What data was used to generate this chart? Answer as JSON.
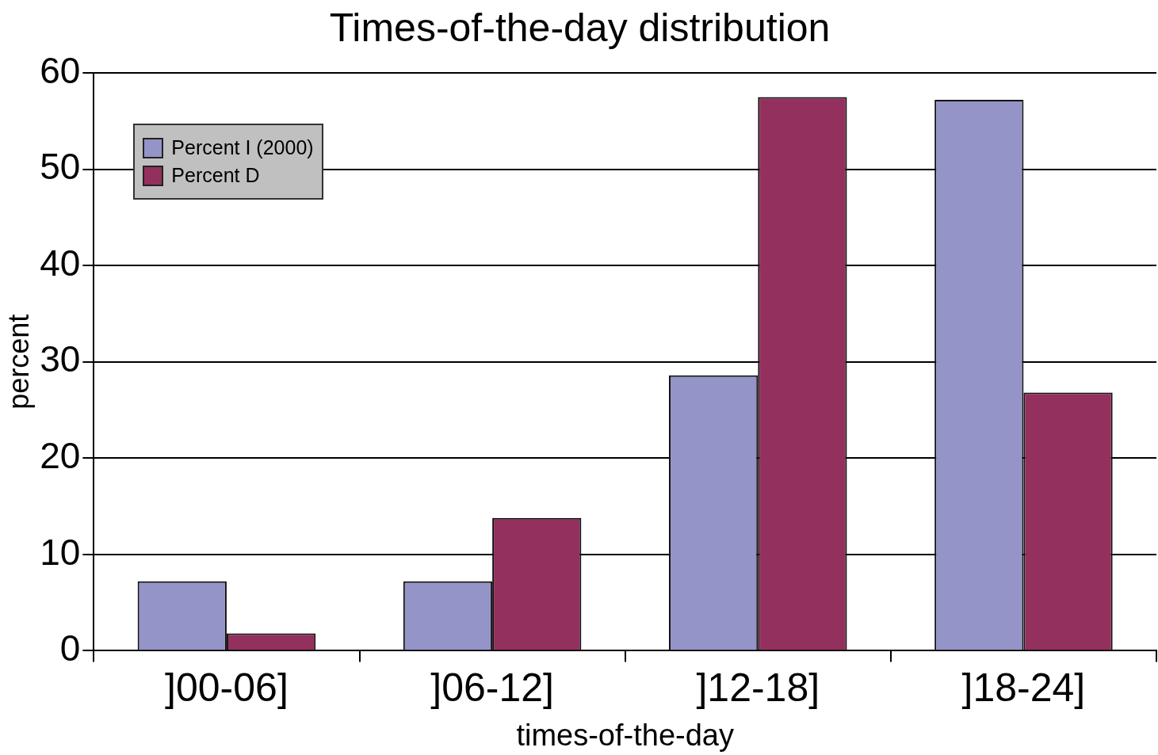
{
  "chart_data": {
    "type": "bar",
    "title": "Times-of-the-day distribution",
    "xlabel": "times-of-the-day",
    "ylabel": "percent",
    "categories": [
      "]00-06]",
      "]06-12]",
      "]12-18]",
      "]18-24]"
    ],
    "series": [
      {
        "name": "Percent I (2000)",
        "color": "#9494c8",
        "values": [
          7.2,
          7.2,
          28.6,
          57.2
        ]
      },
      {
        "name": "Percent D",
        "color": "#94305e",
        "values": [
          1.8,
          13.8,
          57.5,
          26.8
        ]
      }
    ],
    "ylim": [
      0,
      60
    ],
    "yticks": [
      0,
      10,
      20,
      30,
      40,
      50,
      60
    ],
    "grid": "y",
    "legend": "top left"
  }
}
